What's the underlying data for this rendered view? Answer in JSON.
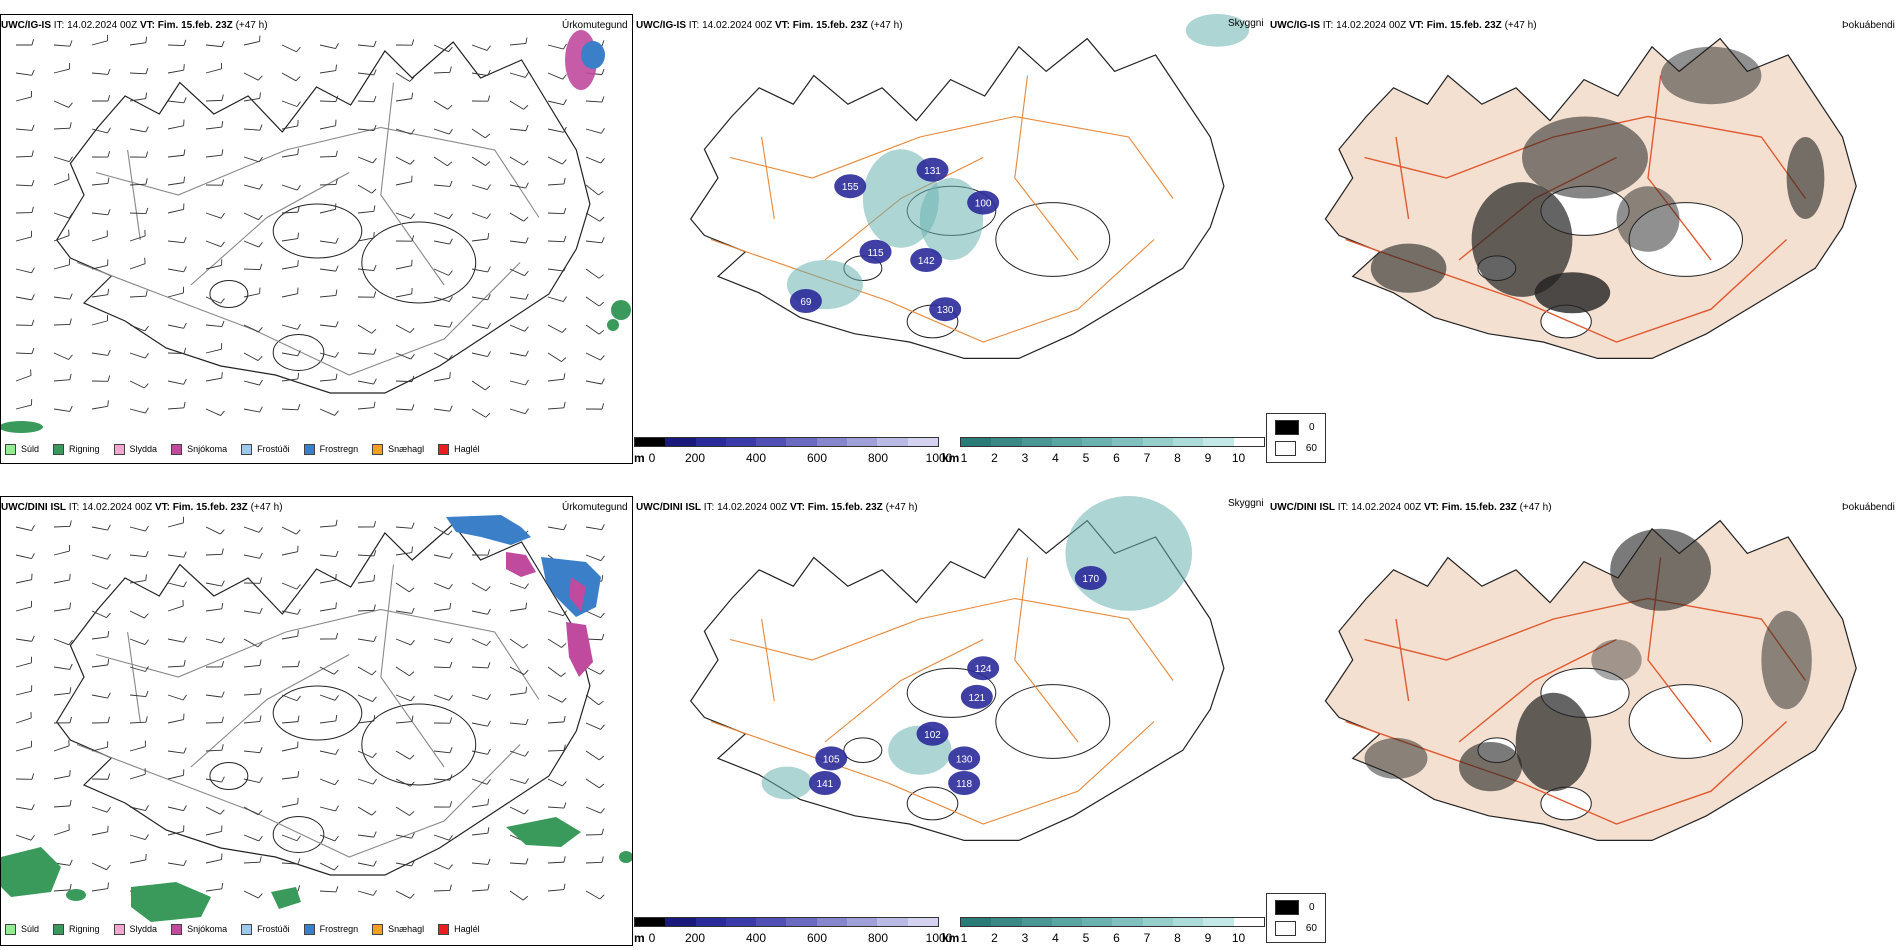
{
  "rows": [
    {
      "model": "UWC/IG-IS",
      "it_label": "IT:",
      "it_value": "14.02.2024 00Z",
      "vt_label": "VT:",
      "vt_value": "Fim. 15.feb. 23Z",
      "lead": "(+47 h)"
    },
    {
      "model": "UWC/DINI ISL",
      "it_label": "IT:",
      "it_value": "14.02.2024 00Z",
      "vt_label": "VT:",
      "vt_value": "Fim. 15.feb. 23Z",
      "lead": "(+47 h)"
    }
  ],
  "panel_titles": {
    "precip": "Úrkomutegund",
    "visibility": "Skyggni",
    "fog": "Þokuábendi"
  },
  "precip_legend": [
    {
      "label": "Súld",
      "color": "#90ee90"
    },
    {
      "label": "Rigning",
      "color": "#3a9a5b"
    },
    {
      "label": "Slydda",
      "color": "#f4a6d0"
    },
    {
      "label": "Snjókoma",
      "color": "#c04a9e"
    },
    {
      "label": "Frostúði",
      "color": "#9ec8f0"
    },
    {
      "label": "Frostregn",
      "color": "#3a7fc8"
    },
    {
      "label": "Snæhagl",
      "color": "#f5a020"
    },
    {
      "label": "Haglél",
      "color": "#e82020"
    }
  ],
  "cloudbase_scale": {
    "unit": "m",
    "ticks": [
      "0",
      "200",
      "400",
      "600",
      "800",
      "1000"
    ],
    "colors": [
      "#000000",
      "#1a1a7a",
      "#2a2a9a",
      "#3a3aa8",
      "#5050b4",
      "#6a6ac0",
      "#8686cc",
      "#a0a0d8",
      "#babae4",
      "#d4d4f0"
    ]
  },
  "visibility_scale": {
    "unit": "km",
    "ticks": [
      "1",
      "2",
      "3",
      "4",
      "5",
      "6",
      "7",
      "8",
      "9",
      "10"
    ],
    "colors": [
      "#2a7a78",
      "#3a8886",
      "#4a9694",
      "#5aa4a2",
      "#6ab2b0",
      "#80c0be",
      "#96cecc",
      "#acdcda",
      "#c4e8e6",
      "#ffffff"
    ]
  },
  "fog_legend": [
    {
      "label": "0",
      "color": "#000000"
    },
    {
      "label": "60",
      "color": "#ffffff"
    }
  ],
  "vis_labels_top": [
    "155",
    "131",
    "142",
    "115",
    "130",
    "69",
    "100"
  ],
  "vis_labels_bottom": [
    "170",
    "124",
    "121",
    "102",
    "130",
    "105",
    "141",
    "118"
  ]
}
